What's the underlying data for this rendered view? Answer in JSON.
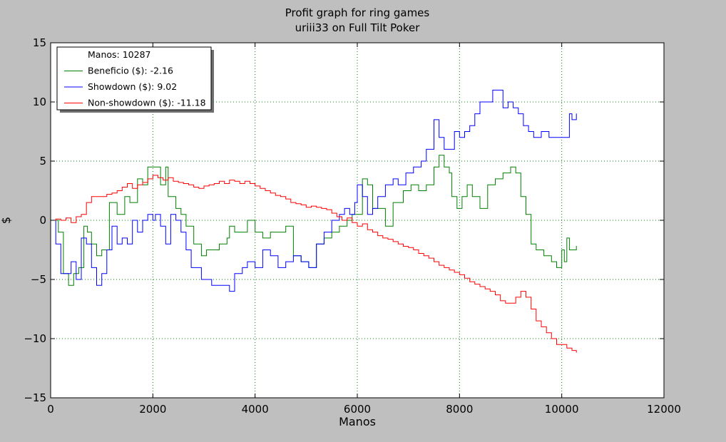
{
  "chart_data": {
    "type": "line",
    "title": "Profit graph for ring games",
    "subtitle": "uriii33 on Full Tilt Poker",
    "xlabel": "Manos",
    "ylabel": "$",
    "xlim": [
      0,
      12000
    ],
    "ylim": [
      -15,
      15
    ],
    "xticks": [
      0,
      2000,
      4000,
      6000,
      8000,
      10000,
      12000
    ],
    "yticks": [
      -15,
      -10,
      -5,
      0,
      5,
      10,
      15
    ],
    "grid": true,
    "legend_position": "top-left",
    "legend_entries": [
      {
        "label": "Manos: 10287",
        "color": "#ffffff"
      },
      {
        "label": "Beneficio ($): -2.16",
        "color": "#008000"
      },
      {
        "label": "Showdown ($): 9.02",
        "color": "#0000ff"
      },
      {
        "label": "Non-showdown ($): -11.18",
        "color": "#ff0000"
      }
    ],
    "series": [
      {
        "name": "Beneficio ($): -2.16",
        "color": "#008000",
        "x": [
          0,
          150,
          250,
          350,
          450,
          550,
          650,
          720,
          800,
          900,
          1000,
          1150,
          1300,
          1450,
          1550,
          1700,
          1800,
          1900,
          1950,
          2050,
          2150,
          2250,
          2300,
          2450,
          2550,
          2650,
          2800,
          2950,
          3050,
          3150,
          3300,
          3450,
          3500,
          3600,
          3750,
          3850,
          4000,
          4150,
          4300,
          4450,
          4600,
          4750,
          4900,
          5050,
          5200,
          5350,
          5500,
          5650,
          5800,
          5900,
          6000,
          6100,
          6200,
          6300,
          6400,
          6550,
          6700,
          6900,
          7050,
          7200,
          7350,
          7500,
          7600,
          7700,
          7800,
          7850,
          7950,
          8050,
          8150,
          8250,
          8400,
          8550,
          8700,
          8850,
          9000,
          9100,
          9200,
          9300,
          9400,
          9500,
          9650,
          9800,
          9900,
          10000,
          10050,
          10100,
          10150,
          10200,
          10287
        ],
        "y": [
          0,
          -1,
          -4.5,
          -5.5,
          -4.5,
          -4,
          -0.5,
          -1,
          -2,
          -3,
          -2.5,
          1.5,
          0.5,
          2,
          1.5,
          3.5,
          3,
          4.5,
          4.5,
          4.5,
          3,
          4.5,
          2,
          1,
          0.5,
          -0.5,
          -2,
          -3,
          -2.5,
          -2.5,
          -2,
          -1.5,
          -0.5,
          -1,
          -1,
          0,
          -1,
          -1.5,
          -1,
          -1,
          -0.5,
          -3,
          -3.5,
          -4,
          -2,
          -1.5,
          -1,
          -0.5,
          0,
          0.5,
          0.5,
          3.5,
          3,
          1,
          1,
          -0.5,
          1.5,
          2.5,
          3,
          2.5,
          3,
          4.5,
          5.5,
          4.5,
          4,
          2,
          1,
          2,
          3,
          2,
          1,
          3,
          3.5,
          4,
          4.5,
          4,
          2,
          0.5,
          -2,
          -2.5,
          -3,
          -3.5,
          -4,
          -2.5,
          -3.5,
          -1.5,
          -2.5,
          -2.5,
          -2.16
        ]
      },
      {
        "name": "Showdown ($): 9.02",
        "color": "#0000ff",
        "x": [
          0,
          100,
          200,
          300,
          400,
          500,
          600,
          700,
          800,
          900,
          1000,
          1100,
          1200,
          1300,
          1400,
          1500,
          1600,
          1700,
          1800,
          1900,
          2000,
          2050,
          2150,
          2250,
          2350,
          2450,
          2550,
          2650,
          2750,
          2850,
          2950,
          3050,
          3150,
          3300,
          3450,
          3500,
          3600,
          3750,
          3850,
          4000,
          4150,
          4300,
          4450,
          4600,
          4750,
          4900,
          5050,
          5200,
          5350,
          5500,
          5650,
          5750,
          5850,
          5950,
          6000,
          6100,
          6200,
          6300,
          6400,
          6550,
          6700,
          6800,
          6950,
          7100,
          7250,
          7350,
          7500,
          7600,
          7700,
          7800,
          7900,
          8000,
          8100,
          8200,
          8300,
          8400,
          8550,
          8650,
          8750,
          8850,
          8950,
          9050,
          9150,
          9250,
          9350,
          9450,
          9600,
          9750,
          9900,
          10000,
          10100,
          10150,
          10200,
          10287
        ],
        "y": [
          0,
          -2,
          -4.5,
          -4.5,
          -3.5,
          -5,
          -1.5,
          -2,
          -4,
          -5.5,
          -4.5,
          -2.5,
          -0.5,
          -2,
          -1.5,
          -2,
          0,
          -1,
          0,
          0.5,
          0,
          0.5,
          -0.5,
          -2,
          0.5,
          0,
          -1,
          -2.5,
          -4,
          -4,
          -5,
          -5,
          -5.5,
          -5.5,
          -5.5,
          -6,
          -4.5,
          -4,
          -3.5,
          -4,
          -2.5,
          -3,
          -4,
          -3.5,
          -3,
          -3.5,
          -4,
          -2,
          -1,
          0,
          0.5,
          1,
          0.5,
          1.5,
          3,
          2,
          0.5,
          1,
          2,
          3,
          3.5,
          3,
          4,
          4.5,
          5,
          6,
          8.5,
          7,
          6,
          6,
          7.5,
          7,
          7.5,
          8,
          9,
          10,
          10,
          11,
          11,
          9.5,
          10,
          9.5,
          9,
          8,
          7.5,
          7,
          7.5,
          7,
          7,
          7,
          7,
          9,
          8.5,
          9.02
        ]
      },
      {
        "name": "Non-showdown ($): -11.18",
        "color": "#ff0000",
        "x": [
          0,
          100,
          200,
          300,
          400,
          500,
          600,
          700,
          800,
          900,
          1000,
          1100,
          1200,
          1300,
          1400,
          1500,
          1600,
          1700,
          1800,
          1900,
          2000,
          2100,
          2200,
          2300,
          2400,
          2500,
          2600,
          2700,
          2800,
          2900,
          3000,
          3100,
          3200,
          3300,
          3400,
          3500,
          3600,
          3700,
          3800,
          3900,
          4000,
          4100,
          4200,
          4300,
          4400,
          4500,
          4600,
          4700,
          4800,
          4900,
          5000,
          5100,
          5200,
          5300,
          5400,
          5500,
          5600,
          5700,
          5800,
          5900,
          6000,
          6100,
          6200,
          6300,
          6400,
          6500,
          6600,
          6700,
          6800,
          6900,
          7000,
          7100,
          7200,
          7300,
          7400,
          7500,
          7600,
          7700,
          7800,
          7900,
          8000,
          8100,
          8200,
          8300,
          8400,
          8500,
          8600,
          8700,
          8800,
          8900,
          9000,
          9100,
          9200,
          9300,
          9400,
          9500,
          9600,
          9700,
          9800,
          9900,
          10000,
          10100,
          10200,
          10287
        ],
        "y": [
          0,
          0.1,
          0,
          0.2,
          -0.2,
          0.3,
          0.5,
          1.5,
          2,
          2,
          2,
          2.2,
          2.3,
          2.5,
          2.8,
          3.1,
          2.7,
          3,
          3.2,
          3.5,
          3.8,
          3.6,
          3.4,
          3.6,
          3.3,
          3.2,
          3.1,
          3,
          2.8,
          2.7,
          2.9,
          3,
          3.1,
          3.3,
          3.1,
          3.4,
          3.3,
          3.1,
          3.3,
          3.1,
          2.9,
          2.7,
          2.5,
          2.3,
          2.1,
          2,
          1.8,
          1.5,
          1.4,
          1.3,
          1.1,
          1.2,
          1.1,
          1.0,
          0.9,
          0.6,
          0.3,
          0,
          0.2,
          -0.2,
          -0.5,
          -0.3,
          -0.8,
          -1,
          -1.3,
          -1.5,
          -1.6,
          -1.8,
          -2,
          -2.2,
          -2.3,
          -2.5,
          -2.8,
          -3,
          -3.2,
          -3.5,
          -3.8,
          -4,
          -4.2,
          -4.4,
          -4.6,
          -4.9,
          -5.2,
          -5.4,
          -5.6,
          -5.8,
          -6,
          -6.3,
          -6.8,
          -7,
          -7,
          -6.5,
          -6,
          -6.5,
          -7.5,
          -8.5,
          -9,
          -9.5,
          -10,
          -10.5,
          -10.5,
          -10.8,
          -11,
          -11.18
        ]
      }
    ]
  }
}
